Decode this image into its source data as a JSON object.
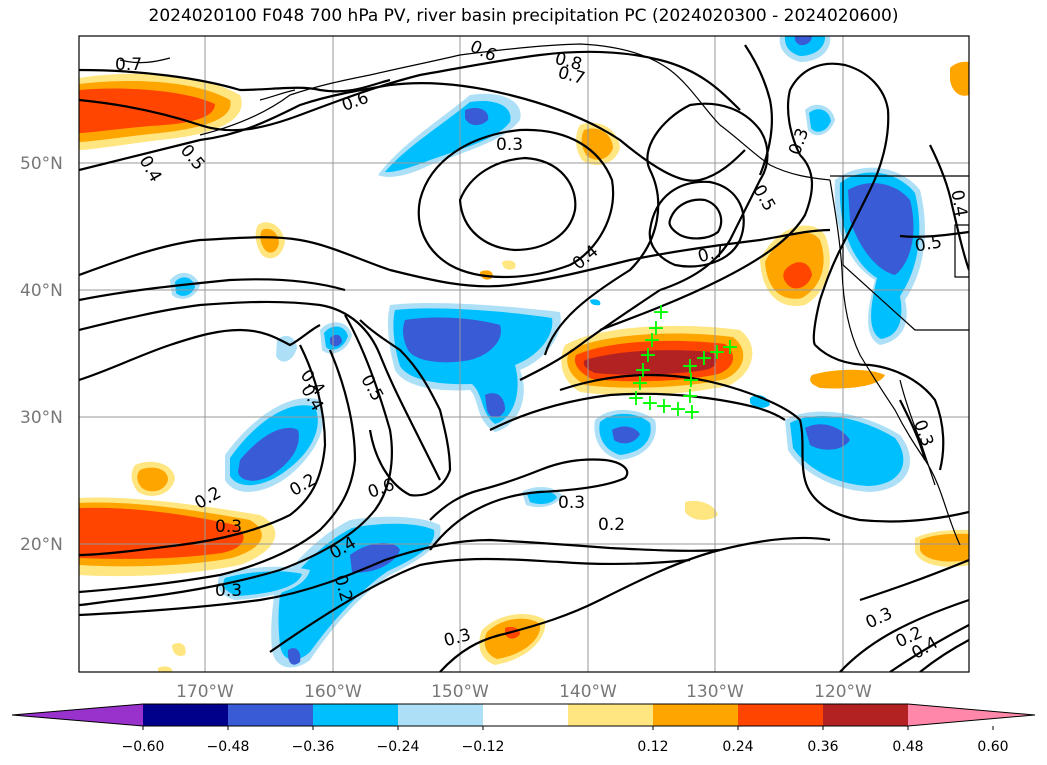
{
  "title": "2024020100 F048 700 hPa PV, river basin precipitation PC (2024020300 - 2024020600)",
  "map": {
    "lat_labels": [
      "50°N",
      "40°N",
      "30°N",
      "20°N"
    ],
    "lon_labels": [
      "170°W",
      "160°W",
      "150°W",
      "140°W",
      "130°W",
      "120°W"
    ],
    "contour_labels": [
      "0.7",
      "0.6",
      "0.8",
      "0.7",
      "0.6",
      "0.4",
      "0.5",
      "0.3",
      "0.3",
      "0.5",
      "0.4",
      "0.4",
      "0.7",
      "0.5",
      "0.4",
      "0.4",
      "0.5",
      "0.2",
      "0.2",
      "0.6",
      "0.3",
      "0.4",
      "0.3",
      "0.2",
      "0.2",
      "0.3",
      "0.3",
      "0.3",
      "0.2",
      "0.4",
      "0.3"
    ]
  },
  "colorbar": {
    "colors": [
      "#9932CC",
      "#00008B",
      "#3A5BD6",
      "#00BFFF",
      "#ADE0F7",
      "#FFFFFF",
      "#FFE680",
      "#FFA500",
      "#FF4500",
      "#B22222",
      "#FF88AA"
    ],
    "ticks": [
      "−0.60",
      "−0.48",
      "−0.36",
      "−0.24",
      "−0.12",
      "0.12",
      "0.24",
      "0.36",
      "0.48",
      "0.60"
    ]
  },
  "markers": {
    "symbol": "+",
    "color": "#00FF00"
  }
}
